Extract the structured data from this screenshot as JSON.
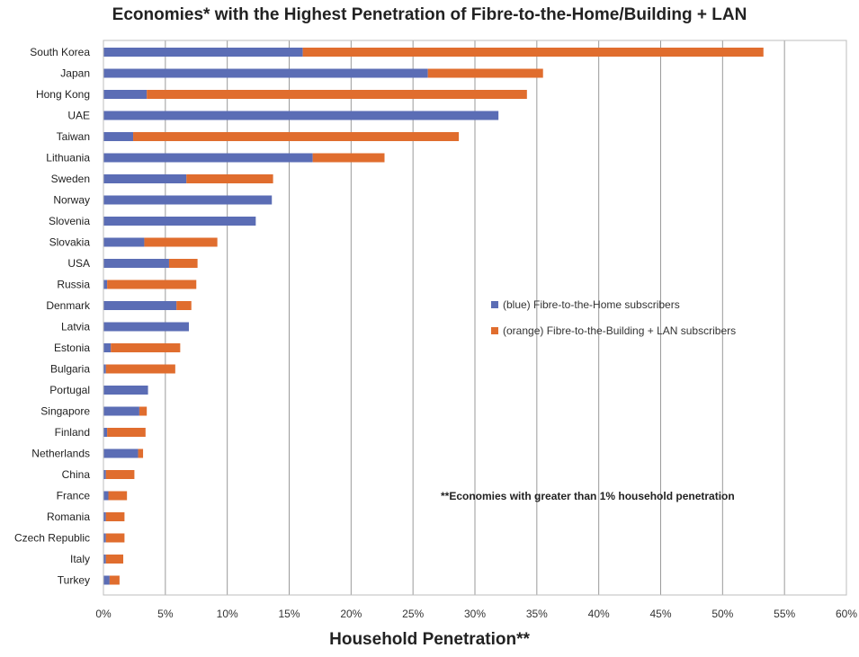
{
  "chart_data": {
    "type": "bar",
    "orientation": "horizontal",
    "stacked": true,
    "title": "Economies* with the Highest Penetration of Fibre-to-the-Home/Building + LAN",
    "xlabel": "Household Penetration**",
    "ylabel": "",
    "xlim": [
      0,
      60
    ],
    "x_ticks": [
      "0%",
      "5%",
      "10%",
      "15%",
      "20%",
      "25%",
      "30%",
      "35%",
      "40%",
      "45%",
      "50%",
      "55%",
      "60%"
    ],
    "grid": "vertical",
    "legend_position": "middle-right",
    "categories": [
      "South Korea",
      "Japan",
      "Hong Kong",
      "UAE",
      "Taiwan",
      "Lithuania",
      "Sweden",
      "Norway",
      "Slovenia",
      "Slovakia",
      "USA",
      "Russia",
      "Denmark",
      "Latvia",
      "Estonia",
      "Bulgaria",
      "Portugal",
      "Singapore",
      "Finland",
      "Netherlands",
      "China",
      "France",
      "Romania",
      "Czech Republic",
      "Italy",
      "Turkey"
    ],
    "series": [
      {
        "name": "(blue) Fibre-to-the-Home subscribers",
        "color": "#5b6db5",
        "values": [
          16.1,
          26.2,
          3.5,
          31.9,
          2.4,
          16.9,
          6.7,
          13.6,
          12.3,
          3.3,
          5.3,
          0.3,
          5.9,
          6.9,
          0.6,
          0.2,
          3.6,
          2.9,
          0.3,
          2.8,
          0.2,
          0.4,
          0.2,
          0.2,
          0.2,
          0.5
        ]
      },
      {
        "name": "(orange) Fibre-to-the-Building + LAN subscribers",
        "color": "#e06d2e",
        "values": [
          37.2,
          9.3,
          30.7,
          0.0,
          26.3,
          5.8,
          7.0,
          0.0,
          0.0,
          5.9,
          2.3,
          7.2,
          1.2,
          0.0,
          5.6,
          5.6,
          0.0,
          0.6,
          3.1,
          0.4,
          2.3,
          1.5,
          1.5,
          1.5,
          1.4,
          0.8
        ]
      }
    ],
    "annotations": [
      "**Economies with greater than 1% household penetration"
    ]
  }
}
